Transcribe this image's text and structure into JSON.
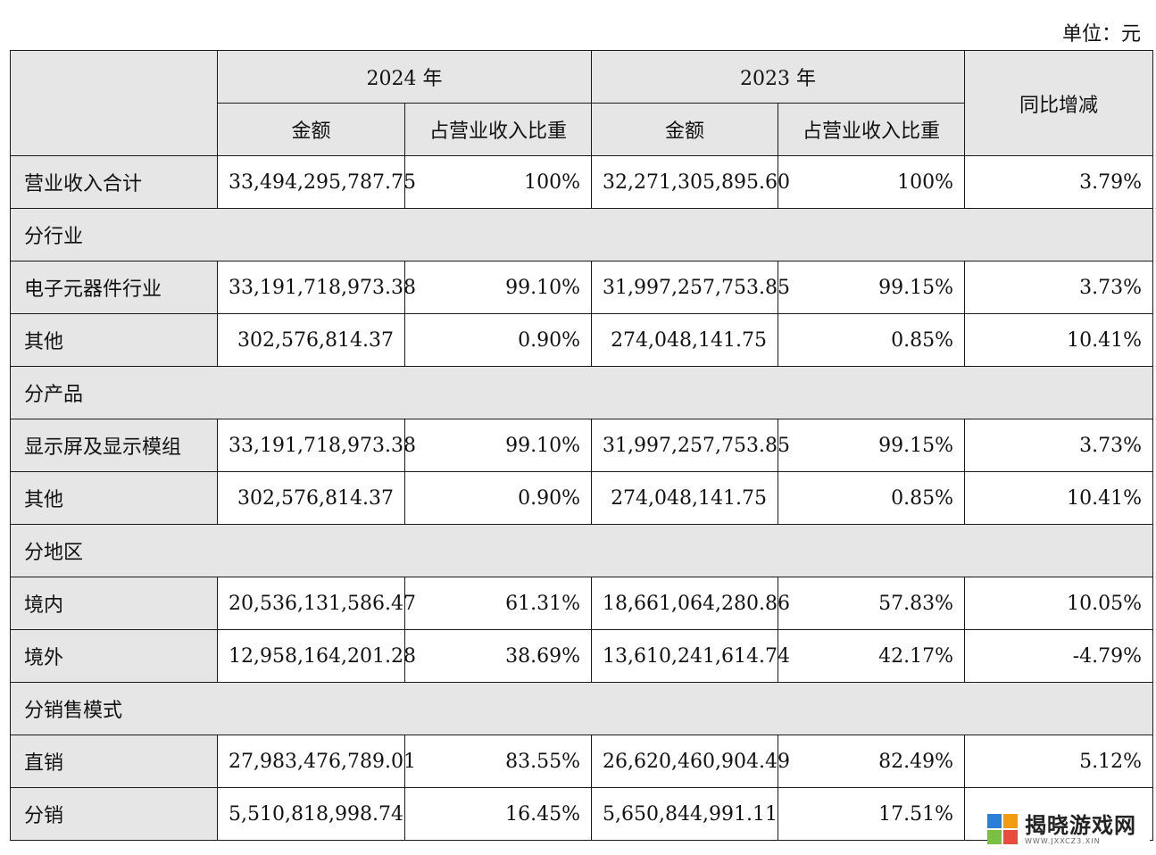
{
  "unit_label": "单位：元",
  "header": {
    "year_2024": "2024 年",
    "year_2023": "2023 年",
    "yoy": "同比增减",
    "amount": "金额",
    "ratio": "占营业收入比重"
  },
  "total": {
    "label": "营业收入合计",
    "amt2024": "33,494,295,787.75",
    "pct2024": "100%",
    "amt2023": "32,271,305,895.60",
    "pct2023": "100%",
    "yoy": "3.79%"
  },
  "sections": [
    {
      "title": "分行业",
      "rows": [
        {
          "label": "电子元器件行业",
          "amt2024": "33,191,718,973.38",
          "pct2024": "99.10%",
          "amt2023": "31,997,257,753.85",
          "pct2023": "99.15%",
          "yoy": "3.73%"
        },
        {
          "label": "其他",
          "amt2024": "302,576,814.37",
          "pct2024": "0.90%",
          "amt2023": "274,048,141.75",
          "pct2023": "0.85%",
          "yoy": "10.41%"
        }
      ]
    },
    {
      "title": "分产品",
      "rows": [
        {
          "label": "显示屏及显示模组",
          "amt2024": "33,191,718,973.38",
          "pct2024": "99.10%",
          "amt2023": "31,997,257,753.85",
          "pct2023": "99.15%",
          "yoy": "3.73%"
        },
        {
          "label": "其他",
          "amt2024": "302,576,814.37",
          "pct2024": "0.90%",
          "amt2023": "274,048,141.75",
          "pct2023": "0.85%",
          "yoy": "10.41%"
        }
      ]
    },
    {
      "title": "分地区",
      "rows": [
        {
          "label": "境内",
          "amt2024": "20,536,131,586.47",
          "pct2024": "61.31%",
          "amt2023": "18,661,064,280.86",
          "pct2023": "57.83%",
          "yoy": "10.05%"
        },
        {
          "label": "境外",
          "amt2024": "12,958,164,201.28",
          "pct2024": "38.69%",
          "amt2023": "13,610,241,614.74",
          "pct2023": "42.17%",
          "yoy": "-4.79%"
        }
      ]
    },
    {
      "title": "分销售模式",
      "rows": [
        {
          "label": "直销",
          "amt2024": "27,983,476,789.01",
          "pct2024": "83.55%",
          "amt2023": "26,620,460,904.49",
          "pct2023": "82.49%",
          "yoy": "5.12%"
        },
        {
          "label": "分销",
          "amt2024": "5,510,818,998.74",
          "pct2024": "16.45%",
          "amt2023": "5,650,844,991.11",
          "pct2023": "17.51%",
          "yoy": ""
        }
      ]
    }
  ],
  "watermark": {
    "text": "揭晓游戏网",
    "sub": "WWW.JXXCZ3.XIN",
    "colors": [
      "#2b7fd6",
      "#f39c12",
      "#e74c3c",
      "#7ac143"
    ]
  }
}
